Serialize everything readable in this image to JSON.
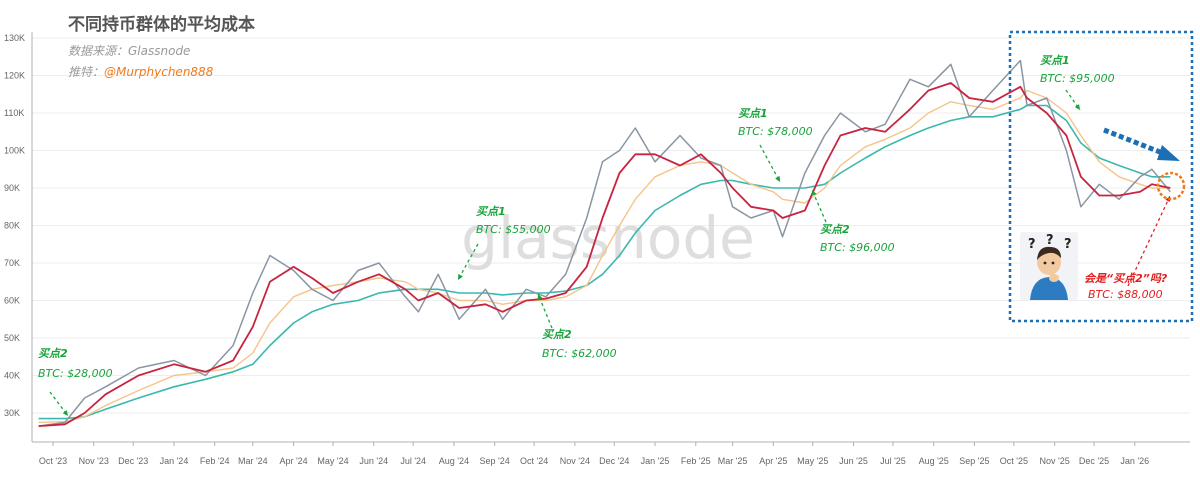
{
  "title": "不同持币群体的平均成本",
  "source": "数据来源：Glassnode",
  "twitter_label": "推特：",
  "twitter_handle": "@Murphychen888",
  "watermark": "glassnode",
  "colors": {
    "price": "#8a95a3",
    "red": "#c8243f",
    "orange": "#f5c48a",
    "teal": "#3ab8ad",
    "green": "#1aa33c",
    "annotation_red": "#e21f1f",
    "box": "#1b6fb5",
    "orange_circle": "#f07a1a"
  },
  "chart_data": {
    "type": "line",
    "y_ticks": [
      "30K",
      "40K",
      "50K",
      "60K",
      "70K",
      "80K",
      "90K",
      "100K",
      "110K",
      "120K",
      "130K"
    ],
    "ylim": [
      22000,
      130000
    ],
    "x_ticks": [
      "Oct '23",
      "Nov '23",
      "Dec '23",
      "Jan '24",
      "Feb '24",
      "Mar '24",
      "Apr '24",
      "May '24",
      "Jun '24",
      "Jul '24",
      "Aug '24",
      "Sep '24",
      "Oct '24",
      "Nov '24",
      "Dec '24",
      "Jan '25",
      "Feb '25",
      "Mar '25",
      "Apr '25",
      "May '25",
      "Jun '25",
      "Jul '25",
      "Aug '25",
      "Sep '25",
      "Oct '25",
      "Nov '25",
      "Dec '25",
      "Jan '26"
    ],
    "x": [
      "2023-09-20",
      "2023-10-10",
      "2023-10-25",
      "2023-11-10",
      "2023-12-05",
      "2024-01-01",
      "2024-01-25",
      "2024-02-15",
      "2024-03-01",
      "2024-03-14",
      "2024-04-01",
      "2024-04-15",
      "2024-05-01",
      "2024-05-20",
      "2024-06-05",
      "2024-06-25",
      "2024-07-05",
      "2024-07-20",
      "2024-08-05",
      "2024-08-25",
      "2024-09-07",
      "2024-09-25",
      "2024-10-10",
      "2024-10-25",
      "2024-11-10",
      "2024-11-22",
      "2024-12-05",
      "2024-12-17",
      "2025-01-01",
      "2025-01-20",
      "2025-02-05",
      "2025-02-20",
      "2025-03-01",
      "2025-03-15",
      "2025-04-01",
      "2025-04-08",
      "2025-04-25",
      "2025-05-10",
      "2025-05-22",
      "2025-06-10",
      "2025-06-25",
      "2025-07-14",
      "2025-07-28",
      "2025-08-14",
      "2025-08-28",
      "2025-09-15",
      "2025-10-06",
      "2025-10-11",
      "2025-10-26",
      "2025-11-10",
      "2025-11-21",
      "2025-12-05",
      "2025-12-20",
      "2026-01-05",
      "2026-01-14",
      "2026-01-28"
    ],
    "series": [
      {
        "key": "price",
        "values": [
          26500,
          27500,
          34000,
          37000,
          42000,
          44000,
          40000,
          48000,
          62000,
          72000,
          68000,
          63000,
          60000,
          68000,
          70000,
          61000,
          57000,
          67000,
          55000,
          63000,
          55000,
          63000,
          61000,
          67000,
          82000,
          97000,
          100000,
          106000,
          97000,
          104000,
          98000,
          96000,
          85000,
          82000,
          84000,
          77000,
          94000,
          104000,
          110000,
          105000,
          107000,
          119000,
          117000,
          123000,
          109000,
          116000,
          124000,
          112000,
          114000,
          100000,
          85000,
          91000,
          87000,
          93000,
          95000,
          89000
        ]
      },
      {
        "key": "red",
        "values": [
          26500,
          27000,
          30000,
          35000,
          40000,
          43000,
          41000,
          44000,
          53000,
          65000,
          69000,
          66000,
          62000,
          65000,
          67000,
          63000,
          60000,
          62000,
          58000,
          59000,
          57000,
          60000,
          60500,
          62000,
          69000,
          82000,
          94000,
          99000,
          99000,
          96000,
          99000,
          94000,
          90000,
          85000,
          84000,
          82000,
          84000,
          96000,
          104000,
          106000,
          105000,
          111000,
          116000,
          118000,
          114000,
          113000,
          117000,
          114000,
          110000,
          104000,
          93000,
          88000,
          88000,
          89000,
          91000,
          90000
        ]
      },
      {
        "key": "orange",
        "values": [
          27500,
          27700,
          29000,
          32000,
          36000,
          40000,
          41000,
          42000,
          46000,
          54000,
          61000,
          63000,
          64000,
          65000,
          66000,
          65000,
          63000,
          62000,
          60000,
          60000,
          59000,
          60000,
          60000,
          61000,
          64000,
          72000,
          80000,
          87000,
          93000,
          96000,
          97000,
          96000,
          94000,
          91000,
          89000,
          87000,
          86000,
          90000,
          96000,
          101000,
          103000,
          106000,
          110000,
          113000,
          112000,
          111000,
          114000,
          116000,
          114000,
          110000,
          104000,
          97000,
          93000,
          91000,
          90000,
          90000
        ]
      },
      {
        "key": "teal",
        "values": [
          28500,
          28500,
          29000,
          31000,
          34000,
          37000,
          39000,
          41000,
          43000,
          48000,
          54000,
          57000,
          59000,
          60000,
          62000,
          63000,
          63000,
          63000,
          62000,
          62000,
          61500,
          62000,
          62000,
          62500,
          64000,
          67000,
          72000,
          78000,
          84000,
          88000,
          91000,
          92000,
          92000,
          91000,
          90000,
          90000,
          90000,
          91000,
          94000,
          98000,
          101000,
          104000,
          106000,
          108000,
          109000,
          109000,
          111000,
          112000,
          112000,
          108000,
          102000,
          98000,
          96000,
          94000,
          93000,
          93000
        ]
      }
    ]
  },
  "annotations": [
    {
      "label": "买点2",
      "price": "BTC: $28,000"
    },
    {
      "label": "买点1",
      "price": "BTC: $55,000"
    },
    {
      "label": "买点2",
      "price": "BTC: $62,000"
    },
    {
      "label": "买点1",
      "price": "BTC: $78,000"
    },
    {
      "label": "买点2",
      "price": "BTC: $96,000"
    },
    {
      "label": "买点1",
      "price": "BTC: $95,000"
    },
    {
      "label": "会是“买点2”吗?",
      "price": "BTC: $88,000"
    }
  ]
}
